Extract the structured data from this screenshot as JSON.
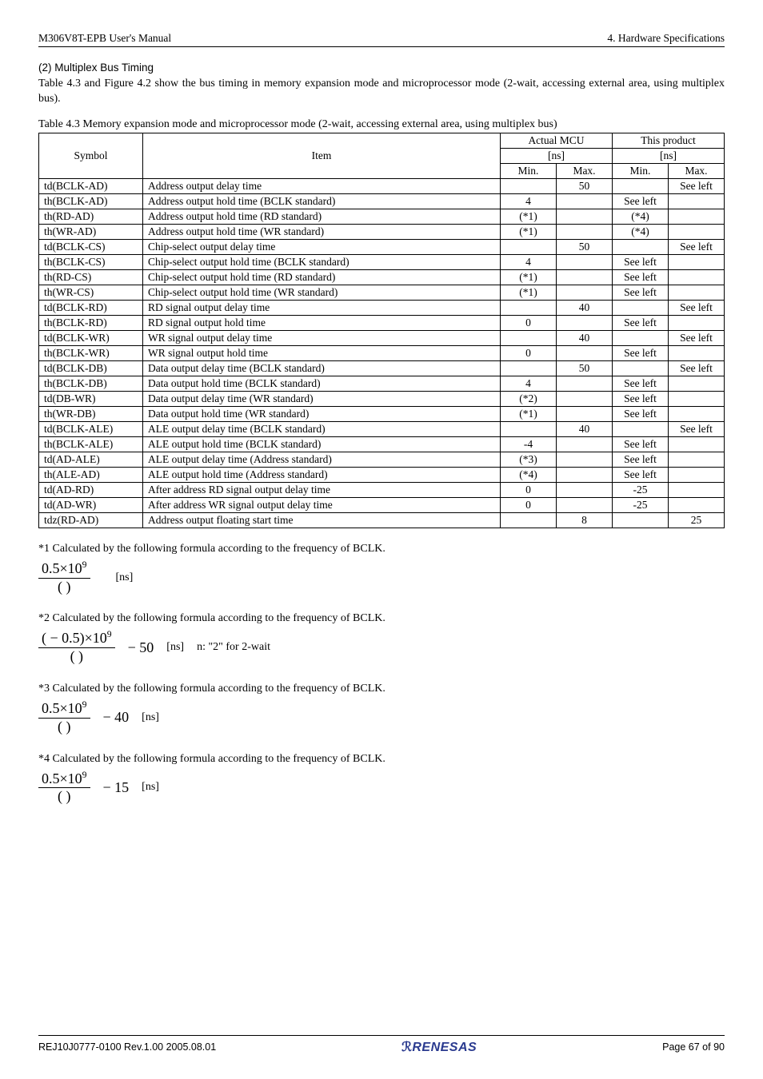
{
  "header": {
    "left": "M306V8T-EPB User's Manual",
    "right": "4. Hardware Specifications"
  },
  "section_title": "(2) Multiplex Bus Timing",
  "intro_para": "Table 4.3 and Figure 4.2 show the bus timing in memory expansion mode and microprocessor mode (2-wait, accessing external area, using multiplex bus).",
  "table": {
    "caption": "Table 4.3 Memory expansion mode and microprocessor mode (2-wait, accessing external area, using multiplex bus)",
    "head": {
      "symbol": "Symbol",
      "item": "Item",
      "actual": "Actual MCU",
      "product": "This product",
      "unit": "[ns]",
      "min": "Min.",
      "max": "Max."
    },
    "rows": [
      {
        "sym": "td(BCLK-AD)",
        "item": "Address output delay time",
        "amin": "",
        "amax": "50",
        "pmin": "",
        "pmax": "See left"
      },
      {
        "sym": "th(BCLK-AD)",
        "item": "Address output hold time (BCLK standard)",
        "amin": "4",
        "amax": "",
        "pmin": "See left",
        "pmax": ""
      },
      {
        "sym": "th(RD-AD)",
        "item": "Address output hold time (RD standard)",
        "amin": "(*1)",
        "amax": "",
        "pmin": "(*4)",
        "pmax": ""
      },
      {
        "sym": "th(WR-AD)",
        "item": "Address output hold time (WR standard)",
        "amin": "(*1)",
        "amax": "",
        "pmin": "(*4)",
        "pmax": ""
      },
      {
        "sym": "td(BCLK-CS)",
        "item": "Chip-select output delay time",
        "amin": "",
        "amax": "50",
        "pmin": "",
        "pmax": "See left"
      },
      {
        "sym": "th(BCLK-CS)",
        "item": "Chip-select output hold time (BCLK standard)",
        "amin": "4",
        "amax": "",
        "pmin": "See left",
        "pmax": ""
      },
      {
        "sym": "th(RD-CS)",
        "item": "Chip-select output hold time (RD standard)",
        "amin": "(*1)",
        "amax": "",
        "pmin": "See left",
        "pmax": ""
      },
      {
        "sym": "th(WR-CS)",
        "item": "Chip-select output hold time (WR standard)",
        "amin": "(*1)",
        "amax": "",
        "pmin": "See left",
        "pmax": ""
      },
      {
        "sym": "td(BCLK-RD)",
        "item": "RD signal output delay time",
        "amin": "",
        "amax": "40",
        "pmin": "",
        "pmax": "See left"
      },
      {
        "sym": "th(BCLK-RD)",
        "item": "RD signal output hold time",
        "amin": "0",
        "amax": "",
        "pmin": "See left",
        "pmax": ""
      },
      {
        "sym": "td(BCLK-WR)",
        "item": "WR signal output delay time",
        "amin": "",
        "amax": "40",
        "pmin": "",
        "pmax": "See left"
      },
      {
        "sym": "th(BCLK-WR)",
        "item": "WR signal output hold time",
        "amin": "0",
        "amax": "",
        "pmin": "See left",
        "pmax": ""
      },
      {
        "sym": "td(BCLK-DB)",
        "item": "Data output delay time (BCLK standard)",
        "amin": "",
        "amax": "50",
        "pmin": "",
        "pmax": "See left"
      },
      {
        "sym": "th(BCLK-DB)",
        "item": "Data output hold time (BCLK standard)",
        "amin": "4",
        "amax": "",
        "pmin": "See left",
        "pmax": ""
      },
      {
        "sym": "td(DB-WR)",
        "item": "Data output delay time (WR standard)",
        "amin": "(*2)",
        "amax": "",
        "pmin": "See left",
        "pmax": ""
      },
      {
        "sym": "th(WR-DB)",
        "item": "Data output hold time (WR standard)",
        "amin": "(*1)",
        "amax": "",
        "pmin": "See left",
        "pmax": ""
      },
      {
        "sym": "td(BCLK-ALE)",
        "item": "ALE output delay time (BCLK standard)",
        "amin": "",
        "amax": "40",
        "pmin": "",
        "pmax": "See left"
      },
      {
        "sym": "th(BCLK-ALE)",
        "item": "ALE output hold time (BCLK standard)",
        "amin": "-4",
        "amax": "",
        "pmin": "See left",
        "pmax": ""
      },
      {
        "sym": "td(AD-ALE)",
        "item": "ALE output delay time (Address standard)",
        "amin": "(*3)",
        "amax": "",
        "pmin": "See left",
        "pmax": ""
      },
      {
        "sym": "th(ALE-AD)",
        "item": "ALE output hold time (Address standard)",
        "amin": "(*4)",
        "amax": "",
        "pmin": "See left",
        "pmax": ""
      },
      {
        "sym": "td(AD-RD)",
        "item": "After address RD signal output delay time",
        "amin": "0",
        "amax": "",
        "pmin": "-25",
        "pmax": ""
      },
      {
        "sym": "td(AD-WR)",
        "item": "After address WR signal output delay time",
        "amin": "0",
        "amax": "",
        "pmin": "-25",
        "pmax": ""
      },
      {
        "sym": "tdz(RD-AD)",
        "item": "Address output floating start time",
        "amin": "",
        "amax": "8",
        "pmin": "",
        "pmax": "25"
      }
    ]
  },
  "notes": {
    "n1": "*1 Calculated by the following formula according to the frequency of BCLK.",
    "n2": "*2 Calculated by the following formula according to the frequency of BCLK.",
    "n3": "*3 Calculated by the following formula according to the frequency of BCLK.",
    "n4": "*4 Calculated by the following formula according to the frequency of BCLK."
  },
  "formulas": {
    "f1": {
      "num": "0.5×10",
      "exp": "9",
      "den": "(            )",
      "after": "",
      "unit": "[ns]",
      "tail": ""
    },
    "f2": {
      "num": "(   − 0.5)×10",
      "exp": "9",
      "den": "(            )",
      "after": " − 50",
      "unit": "[ns]",
      "tail": "n: \"2\" for 2-wait"
    },
    "f3": {
      "num": "0.5×10",
      "exp": "9",
      "den": "(            )",
      "after": " − 40",
      "unit": "[ns]",
      "tail": ""
    },
    "f4": {
      "num": "0.5×10",
      "exp": "9",
      "den": "(            )",
      "after": " − 15",
      "unit": "[ns]",
      "tail": ""
    }
  },
  "footer": {
    "left": "REJ10J0777-0100   Rev.1.00   2005.08.01",
    "center": "RENESAS",
    "right": "Page 67 of 90"
  }
}
